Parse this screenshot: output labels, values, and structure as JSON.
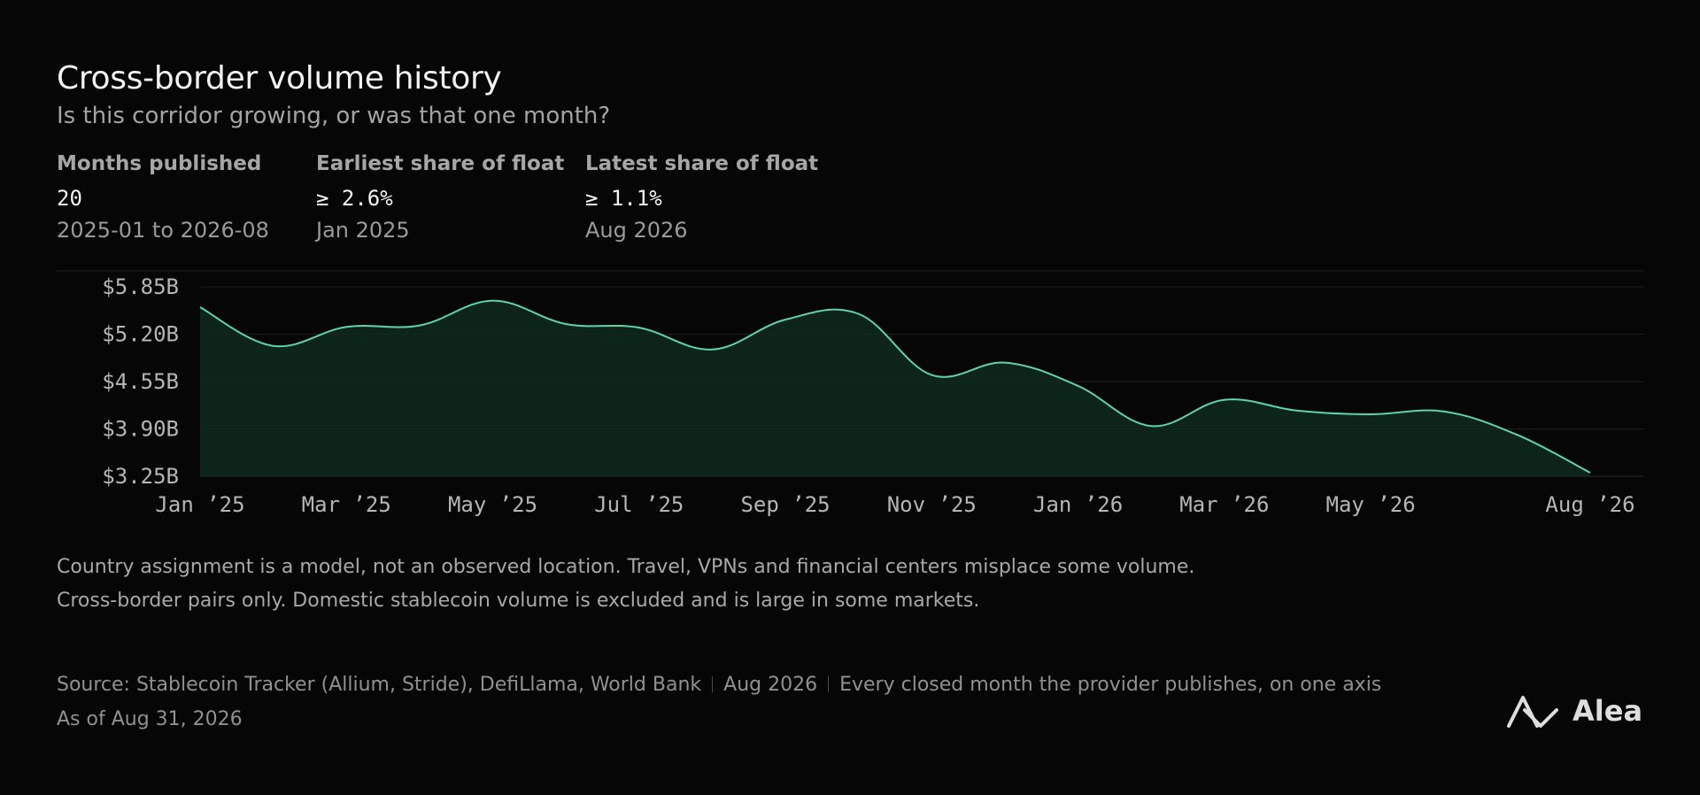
{
  "header": {
    "title": "Cross-border volume history",
    "subtitle": "Is this corridor growing, or was that one month?"
  },
  "stats": [
    {
      "label": "Months published",
      "value": "20",
      "sub": "2025-01 to 2026-08"
    },
    {
      "label": "Earliest share of float",
      "value": "≥ 2.6%",
      "sub": "Jan 2025"
    },
    {
      "label": "Latest share of float",
      "value": "≥ 1.1%",
      "sub": "Aug 2026"
    }
  ],
  "chart_data": {
    "type": "area",
    "x": [
      "2025-01",
      "2025-02",
      "2025-03",
      "2025-04",
      "2025-05",
      "2025-06",
      "2025-07",
      "2025-08",
      "2025-09",
      "2025-10",
      "2025-11",
      "2025-12",
      "2026-01",
      "2026-02",
      "2026-03",
      "2026-04",
      "2026-05",
      "2026-06",
      "2026-07",
      "2026-08"
    ],
    "x_tick_labels": [
      {
        "x": "2025-01",
        "label": "Jan ’25"
      },
      {
        "x": "2025-03",
        "label": "Mar ’25"
      },
      {
        "x": "2025-05",
        "label": "May ’25"
      },
      {
        "x": "2025-07",
        "label": "Jul ’25"
      },
      {
        "x": "2025-09",
        "label": "Sep ’25"
      },
      {
        "x": "2025-11",
        "label": "Nov ’25"
      },
      {
        "x": "2026-01",
        "label": "Jan ’26"
      },
      {
        "x": "2026-03",
        "label": "Mar ’26"
      },
      {
        "x": "2026-05",
        "label": "May ’26"
      },
      {
        "x": "2026-08",
        "label": "Aug ’26"
      }
    ],
    "series": [
      {
        "values": [
          5.57,
          5.04,
          5.3,
          5.32,
          5.66,
          5.34,
          5.29,
          4.99,
          5.4,
          5.48,
          4.64,
          4.81,
          4.49,
          3.94,
          4.3,
          4.15,
          4.1,
          4.14,
          3.82,
          3.3
        ],
        "unit": "$B"
      }
    ],
    "y_ticks": [
      "$5.85B",
      "$5.20B",
      "$4.55B",
      "$3.90B",
      "$3.25B"
    ],
    "y_tick_values": [
      5.85,
      5.2,
      4.55,
      3.9,
      3.25
    ],
    "ylim": [
      3.25,
      5.85
    ],
    "grid": true,
    "colors": {
      "line": "#5fd3a8",
      "fill": "#0f2a20",
      "grid": "#1e1e1e",
      "axis": "#2c2c2c"
    }
  },
  "notes": [
    "Country assignment is a model, not an observed location. Travel, VPNs and financial centers misplace some volume.",
    "Cross-border pairs only. Domestic stablecoin volume is excluded and is large in some markets."
  ],
  "footer": {
    "source": "Source: Stablecoin Tracker (Allium, Stride), DefiLlama, World Bank",
    "period": "Aug 2026",
    "description": "Every closed month the provider publishes, on one axis",
    "as_of": "As of Aug 31, 2026"
  },
  "brand": {
    "name": "Alea",
    "icon": "alea-logo-icon"
  }
}
